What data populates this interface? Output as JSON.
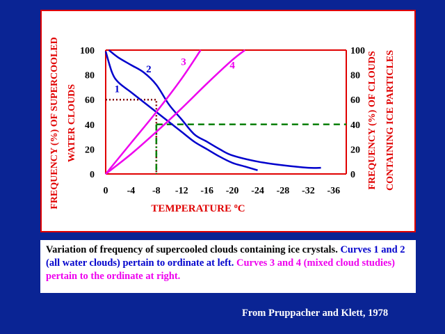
{
  "chart_data": {
    "type": "line",
    "xlabel": "TEMPERATURE",
    "xlabel_unit": "o",
    "xlabel_unit_suffix": "C",
    "ylabel_left": [
      "FREQUENCY (%) OF SUPERCOOLED",
      "WATER CLOUDS"
    ],
    "ylabel_right": [
      "FREQUENCY (%)  OF CLOUDS",
      "CONTAINING ICE PARTICLES"
    ],
    "xlim": [
      0,
      -38
    ],
    "ylim": [
      0,
      100
    ],
    "x_ticks": [
      "0",
      "-4",
      "-8",
      "-12",
      "-16",
      "-20",
      "-24",
      "-28",
      "-32",
      "-36"
    ],
    "x_tick_values": [
      0,
      -4,
      -8,
      -12,
      -16,
      -20,
      -24,
      -28,
      -32,
      -36
    ],
    "y_ticks": [
      "0",
      "20",
      "40",
      "60",
      "80",
      "100"
    ],
    "y_tick_values": [
      0,
      20,
      40,
      60,
      80,
      100
    ],
    "series": [
      {
        "name": "1",
        "axis": "left",
        "color": "#0000cc",
        "x": [
          0,
          -1,
          -2,
          -4,
          -6,
          -8,
          -10,
          -12,
          -14,
          -16,
          -18,
          -20,
          -22,
          -24
        ],
        "y": [
          99,
          82,
          74,
          66,
          58,
          50,
          42,
          34,
          26,
          20,
          14,
          9,
          6,
          3
        ]
      },
      {
        "name": "2",
        "axis": "left",
        "color": "#0000cc",
        "x": [
          -0.5,
          -2,
          -4,
          -6,
          -8,
          -10,
          -12,
          -14,
          -16,
          -18,
          -20,
          -24,
          -28,
          -32,
          -34
        ],
        "y": [
          100,
          94,
          88,
          82,
          72,
          56,
          44,
          32,
          26,
          20,
          15,
          10,
          7,
          5,
          5
        ]
      },
      {
        "name": "3",
        "axis": "right",
        "color": "#ee00ee",
        "x": [
          0,
          -4,
          -8,
          -12,
          -15
        ],
        "y": [
          0,
          25,
          50,
          77,
          100
        ]
      },
      {
        "name": "4",
        "axis": "right",
        "color": "#ee00ee",
        "x": [
          0,
          -4,
          -8,
          -12,
          -16,
          -20,
          -22
        ],
        "y": [
          0,
          16,
          34,
          53,
          73,
          92,
          100
        ]
      }
    ],
    "annotations": [
      {
        "type": "dotted",
        "color": "#800000",
        "x": -8,
        "y": 60,
        "axis": "left"
      },
      {
        "type": "dashed",
        "color": "#008000",
        "x": -8,
        "y": 40,
        "axis": "right"
      }
    ]
  },
  "caption": {
    "line1": "Variation of frequency of supercooled clouds containing ice crystals.",
    "blue_part": "Curves 1 and 2 (all water clouds) pertain to ordinate at left.",
    "magenta_part": "Curves 3 and 4 (mixed cloud studies) pertain to the ordinate at right."
  },
  "credit": "From Pruppacher and Klett, 1978",
  "colors": {
    "background": "#0a2494",
    "panel_border": "#e00000",
    "axis": "#e00000",
    "left_label": "#e00000",
    "right_label": "#e00000"
  }
}
